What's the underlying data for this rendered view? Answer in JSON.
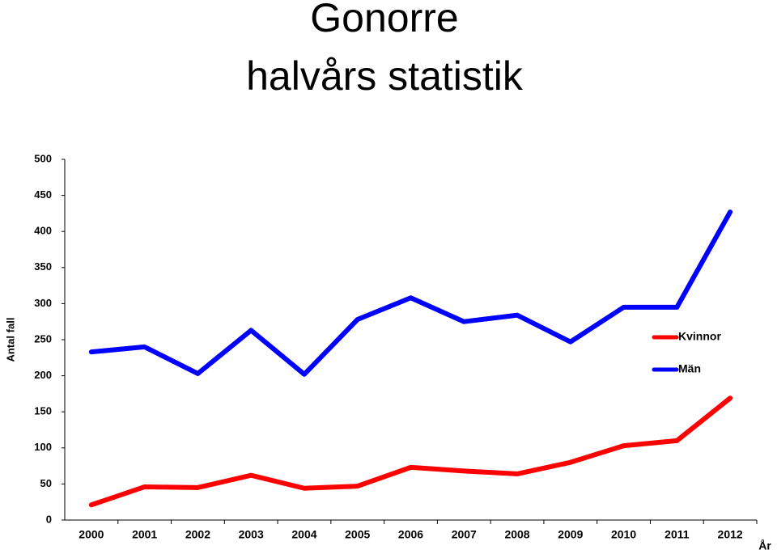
{
  "chart_data": {
    "type": "line",
    "title": "Gonorre",
    "subtitle": "halvårs statistik",
    "y_label": "Antal fall",
    "x_label": "År",
    "categories": [
      "2000",
      "2001",
      "2002",
      "2003",
      "2004",
      "2005",
      "2006",
      "2007",
      "2008",
      "2009",
      "2010",
      "2011",
      "2012"
    ],
    "series": [
      {
        "name": "Kvinnor",
        "color": "#ff0000",
        "values": [
          21,
          46,
          45,
          62,
          44,
          47,
          73,
          68,
          64,
          80,
          103,
          110,
          169
        ]
      },
      {
        "name": "Män",
        "color": "#0000ff",
        "values": [
          233,
          240,
          203,
          263,
          202,
          278,
          308,
          275,
          284,
          247,
          295,
          295,
          427
        ]
      }
    ],
    "ylim": [
      0,
      500
    ],
    "yticks": [
      0,
      50,
      100,
      150,
      200,
      250,
      300,
      350,
      400,
      450,
      500
    ],
    "legend": "right",
    "grid": false
  }
}
